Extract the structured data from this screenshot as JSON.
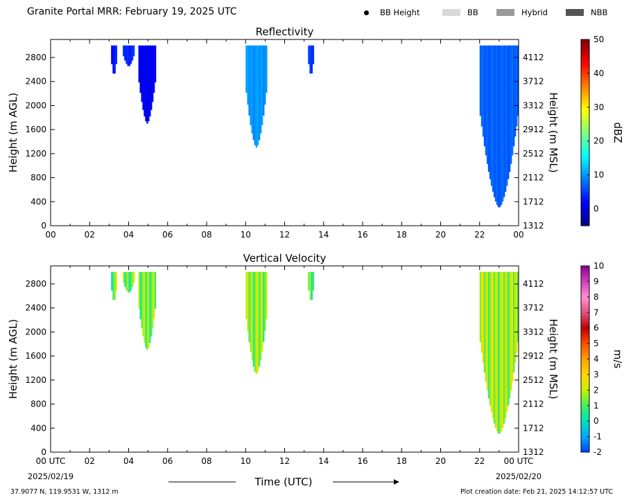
{
  "header": {
    "title": "Granite Portal MRR:  February 19, 2025 UTC"
  },
  "legend": {
    "items": [
      {
        "label": "BB Height",
        "kind": "dot",
        "color": "#000000"
      },
      {
        "label": "BB",
        "kind": "swatch",
        "color": "#d9d9d9"
      },
      {
        "label": "Hybrid",
        "kind": "swatch",
        "color": "#999999"
      },
      {
        "label": "NBB",
        "kind": "swatch",
        "color": "#555555"
      }
    ]
  },
  "footer": {
    "location": "37.9077 N, 119.9531 W, 1312 m",
    "creation": "Plot creation date: Feb 21, 2025 14:12:57 UTC"
  },
  "chart_data": [
    {
      "type": "heatmap",
      "title": "Reflectivity",
      "xlabel": "Time (UTC)",
      "ylabel": "Height (m AGL)",
      "ylabel_right": "Height (m MSL)",
      "x_ticks": [
        "00",
        "02",
        "04",
        "06",
        "08",
        "10",
        "12",
        "14",
        "16",
        "18",
        "20",
        "22",
        "00"
      ],
      "x_first_label": "00 UTC",
      "x_last_label": "00 UTC",
      "start_date": "2025/02/19",
      "end_date": "2025/02/20",
      "xlim": [
        0,
        24
      ],
      "ylim": [
        0,
        3100
      ],
      "y_ticks": [
        0,
        400,
        800,
        1200,
        1600,
        2000,
        2400,
        2800
      ],
      "y_ticks_right": [
        1312,
        1712,
        2112,
        2512,
        2912,
        3312,
        3712,
        4112
      ],
      "colorbar": {
        "label": "dBZ",
        "range": [
          -5,
          50
        ],
        "ticks": [
          0,
          10,
          20,
          30,
          40,
          50
        ],
        "colormap": "jet"
      },
      "echo_columns": [
        {
          "start_hour": 3.1,
          "end_hour": 3.4,
          "top_m": 3000,
          "bottom_m": 2500,
          "value": 3
        },
        {
          "start_hour": 3.7,
          "end_hour": 4.3,
          "top_m": 3000,
          "bottom_m": 2650,
          "value": 4
        },
        {
          "start_hour": 4.5,
          "end_hour": 5.4,
          "top_m": 3000,
          "bottom_m": 1700,
          "value": 1
        },
        {
          "start_hour": 10.0,
          "end_hour": 11.1,
          "top_m": 3000,
          "bottom_m": 1300,
          "value": 10
        },
        {
          "start_hour": 13.2,
          "end_hour": 13.5,
          "top_m": 3000,
          "bottom_m": 2500,
          "value": 5
        },
        {
          "start_hour": 22.0,
          "end_hour": 24.0,
          "top_m": 3000,
          "bottom_m": 300,
          "value": 7
        }
      ]
    },
    {
      "type": "heatmap",
      "title": "Vertical Velocity",
      "xlabel": "Time (UTC)",
      "ylabel": "Height (m AGL)",
      "ylabel_right": "Height (m MSL)",
      "x_ticks": [
        "00",
        "02",
        "04",
        "06",
        "08",
        "10",
        "12",
        "14",
        "16",
        "18",
        "20",
        "22",
        "00"
      ],
      "x_first_label": "00 UTC",
      "x_last_label": "00 UTC",
      "start_date": "2025/02/19",
      "end_date": "2025/02/20",
      "xlim": [
        0,
        24
      ],
      "ylim": [
        0,
        3100
      ],
      "y_ticks": [
        0,
        400,
        800,
        1200,
        1600,
        2000,
        2400,
        2800
      ],
      "y_ticks_right": [
        1312,
        1712,
        2112,
        2512,
        2912,
        3312,
        3712,
        4112
      ],
      "colorbar": {
        "label": "m/s",
        "range": [
          -2,
          10
        ],
        "ticks": [
          -2,
          -1,
          0,
          1,
          2,
          3,
          4,
          5,
          6,
          7,
          8,
          9,
          10
        ]
      },
      "echo_columns": [
        {
          "start_hour": 3.1,
          "end_hour": 3.4,
          "top_m": 3000,
          "bottom_m": 2500,
          "value": 1.2
        },
        {
          "start_hour": 3.7,
          "end_hour": 4.3,
          "top_m": 3000,
          "bottom_m": 2650,
          "value": 1.2
        },
        {
          "start_hour": 4.5,
          "end_hour": 5.4,
          "top_m": 3000,
          "bottom_m": 1700,
          "value": 1.4
        },
        {
          "start_hour": 10.0,
          "end_hour": 11.1,
          "top_m": 3000,
          "bottom_m": 1300,
          "value": 1.6
        },
        {
          "start_hour": 13.2,
          "end_hour": 13.5,
          "top_m": 3000,
          "bottom_m": 2500,
          "value": 1.2
        },
        {
          "start_hour": 22.0,
          "end_hour": 24.0,
          "top_m": 3000,
          "bottom_m": 300,
          "value": 1.8
        }
      ]
    }
  ]
}
